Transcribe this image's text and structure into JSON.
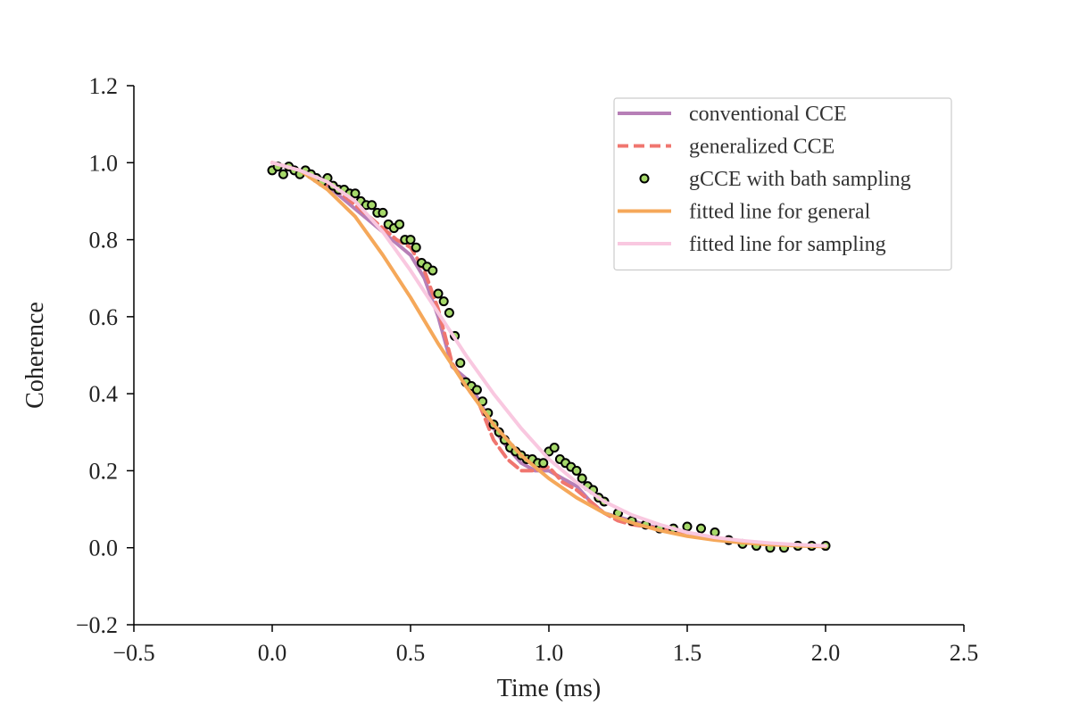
{
  "chart_data": {
    "type": "line",
    "xlabel": "Time (ms)",
    "ylabel": "Coherence",
    "xlim": [
      -0.5,
      2.5
    ],
    "ylim": [
      -0.2,
      1.2
    ],
    "xticks": [
      -0.5,
      0.0,
      0.5,
      1.0,
      1.5,
      2.0,
      2.5
    ],
    "yticks": [
      -0.2,
      0.0,
      0.2,
      0.4,
      0.6,
      0.8,
      1.0,
      1.2
    ],
    "xtick_labels": [
      "−0.5",
      "0.0",
      "0.5",
      "1.0",
      "1.5",
      "2.0",
      "2.5"
    ],
    "ytick_labels": [
      "−0.2",
      "0.0",
      "0.2",
      "0.4",
      "0.6",
      "0.8",
      "1.0",
      "1.2"
    ],
    "grid": false,
    "legend_position": "top-right",
    "series": [
      {
        "name": "conventional CCE",
        "style": "solid",
        "color": "#b77fb7",
        "x": [
          0.0,
          0.05,
          0.1,
          0.15,
          0.2,
          0.25,
          0.3,
          0.35,
          0.4,
          0.45,
          0.5,
          0.55,
          0.6,
          0.65,
          0.7,
          0.75,
          0.8,
          0.85,
          0.9,
          0.95,
          1.0,
          1.05,
          1.1,
          1.15,
          1.2,
          1.25,
          1.3,
          1.35,
          1.4,
          1.45,
          1.5,
          1.55,
          1.6,
          1.65,
          1.7,
          1.75,
          1.8,
          1.85,
          1.9,
          1.95,
          2.0
        ],
        "y": [
          1.0,
          0.99,
          0.98,
          0.96,
          0.94,
          0.91,
          0.88,
          0.85,
          0.82,
          0.79,
          0.76,
          0.7,
          0.6,
          0.47,
          0.44,
          0.38,
          0.31,
          0.26,
          0.22,
          0.2,
          0.2,
          0.18,
          0.16,
          0.12,
          0.09,
          0.08,
          0.07,
          0.06,
          0.05,
          0.05,
          0.04,
          0.03,
          0.025,
          0.02,
          0.015,
          0.01,
          0.01,
          0.008,
          0.006,
          0.005,
          0.005
        ]
      },
      {
        "name": "generalized CCE",
        "style": "dashed",
        "color": "#f0766f",
        "x": [
          0.0,
          0.05,
          0.1,
          0.15,
          0.2,
          0.25,
          0.3,
          0.35,
          0.4,
          0.45,
          0.5,
          0.55,
          0.6,
          0.65,
          0.7,
          0.75,
          0.8,
          0.85,
          0.9,
          0.95,
          1.0,
          1.05,
          1.1,
          1.15,
          1.2,
          1.25,
          1.3,
          1.35,
          1.4,
          1.45,
          1.5,
          1.55,
          1.6,
          1.65,
          1.7,
          1.75,
          1.8,
          1.85,
          1.9,
          1.95,
          2.0
        ],
        "y": [
          1.0,
          0.99,
          0.98,
          0.96,
          0.94,
          0.92,
          0.89,
          0.86,
          0.83,
          0.8,
          0.78,
          0.72,
          0.62,
          0.48,
          0.42,
          0.37,
          0.28,
          0.23,
          0.2,
          0.2,
          0.21,
          0.17,
          0.15,
          0.12,
          0.09,
          0.07,
          0.06,
          0.055,
          0.05,
          0.045,
          0.04,
          0.03,
          0.025,
          0.02,
          0.015,
          0.01,
          0.008,
          0.007,
          0.006,
          0.005,
          0.004
        ]
      },
      {
        "name": "gCCE with bath sampling",
        "style": "markers",
        "color": "#a6d96a",
        "x": [
          0.0,
          0.02,
          0.04,
          0.06,
          0.08,
          0.1,
          0.12,
          0.14,
          0.16,
          0.18,
          0.2,
          0.22,
          0.24,
          0.26,
          0.28,
          0.3,
          0.32,
          0.34,
          0.36,
          0.38,
          0.4,
          0.42,
          0.44,
          0.46,
          0.48,
          0.5,
          0.52,
          0.54,
          0.56,
          0.58,
          0.6,
          0.62,
          0.64,
          0.66,
          0.68,
          0.7,
          0.72,
          0.74,
          0.76,
          0.78,
          0.8,
          0.82,
          0.84,
          0.86,
          0.88,
          0.9,
          0.92,
          0.94,
          0.96,
          0.98,
          1.0,
          1.02,
          1.04,
          1.06,
          1.08,
          1.1,
          1.12,
          1.14,
          1.16,
          1.18,
          1.2,
          1.25,
          1.3,
          1.35,
          1.4,
          1.45,
          1.5,
          1.55,
          1.6,
          1.65,
          1.7,
          1.75,
          1.8,
          1.85,
          1.9,
          1.95,
          2.0
        ],
        "y": [
          0.98,
          0.99,
          0.97,
          0.99,
          0.98,
          0.97,
          0.98,
          0.97,
          0.96,
          0.95,
          0.96,
          0.94,
          0.93,
          0.93,
          0.92,
          0.92,
          0.9,
          0.89,
          0.89,
          0.87,
          0.87,
          0.84,
          0.83,
          0.84,
          0.8,
          0.8,
          0.78,
          0.74,
          0.73,
          0.72,
          0.66,
          0.64,
          0.61,
          0.55,
          0.48,
          0.43,
          0.42,
          0.41,
          0.38,
          0.35,
          0.32,
          0.3,
          0.28,
          0.26,
          0.25,
          0.24,
          0.23,
          0.23,
          0.22,
          0.22,
          0.25,
          0.26,
          0.23,
          0.22,
          0.21,
          0.2,
          0.18,
          0.16,
          0.15,
          0.13,
          0.12,
          0.09,
          0.07,
          0.06,
          0.05,
          0.05,
          0.055,
          0.05,
          0.04,
          0.02,
          0.01,
          0.005,
          0.0,
          0.0,
          0.005,
          0.005,
          0.005
        ]
      },
      {
        "name": "fitted line for general",
        "style": "solid",
        "color": "#f5a85a",
        "x": [
          0.0,
          0.1,
          0.2,
          0.3,
          0.4,
          0.5,
          0.6,
          0.7,
          0.8,
          0.9,
          1.0,
          1.1,
          1.2,
          1.3,
          1.4,
          1.5,
          1.6,
          1.7,
          1.8,
          1.9,
          2.0
        ],
        "y": [
          1.0,
          0.98,
          0.93,
          0.86,
          0.76,
          0.65,
          0.53,
          0.42,
          0.32,
          0.24,
          0.18,
          0.13,
          0.09,
          0.065,
          0.045,
          0.03,
          0.02,
          0.013,
          0.008,
          0.005,
          0.003
        ]
      },
      {
        "name": "fitted line for sampling",
        "style": "solid",
        "color": "#f9c8e0",
        "x": [
          0.0,
          0.1,
          0.2,
          0.3,
          0.4,
          0.5,
          0.6,
          0.7,
          0.8,
          0.9,
          1.0,
          1.1,
          1.2,
          1.3,
          1.4,
          1.5,
          1.6,
          1.7,
          1.8,
          1.9,
          2.0
        ],
        "y": [
          1.0,
          0.98,
          0.95,
          0.9,
          0.82,
          0.72,
          0.61,
          0.5,
          0.4,
          0.31,
          0.23,
          0.17,
          0.12,
          0.085,
          0.06,
          0.04,
          0.027,
          0.018,
          0.012,
          0.008,
          0.005
        ]
      }
    ]
  }
}
